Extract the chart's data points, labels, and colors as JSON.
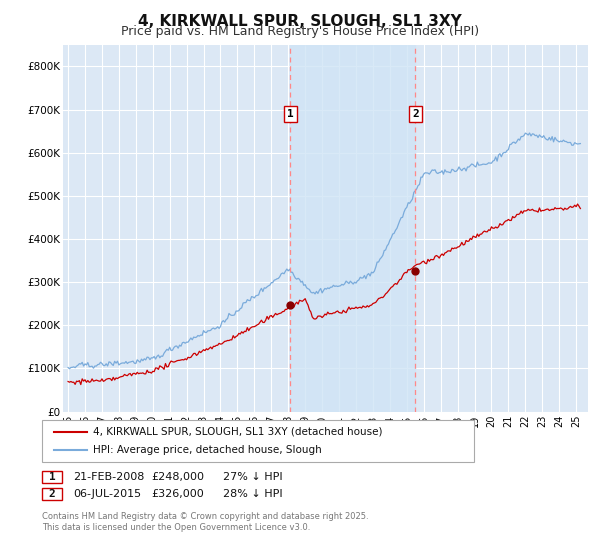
{
  "title": "4, KIRKWALL SPUR, SLOUGH, SL1 3XY",
  "subtitle": "Price paid vs. HM Land Registry's House Price Index (HPI)",
  "ylim": [
    0,
    850000
  ],
  "yticks": [
    0,
    100000,
    200000,
    300000,
    400000,
    500000,
    600000,
    700000,
    800000
  ],
  "ytick_labels": [
    "£0",
    "£100K",
    "£200K",
    "£300K",
    "£400K",
    "£500K",
    "£600K",
    "£700K",
    "£800K"
  ],
  "background_color": "#ffffff",
  "plot_background": "#dce8f5",
  "grid_color": "#ffffff",
  "title_fontsize": 11,
  "subtitle_fontsize": 9,
  "marker1_year": 2008.13,
  "marker1_price": 248000,
  "marker2_year": 2015.51,
  "marker2_price": 326000,
  "legend_line1": "4, KIRKWALL SPUR, SLOUGH, SL1 3XY (detached house)",
  "legend_line2": "HPI: Average price, detached house, Slough",
  "footnote": "Contains HM Land Registry data © Crown copyright and database right 2025.\nThis data is licensed under the Open Government Licence v3.0.",
  "table_rows": [
    [
      "1",
      "21-FEB-2008",
      "£248,000",
      "27% ↓ HPI"
    ],
    [
      "2",
      "06-JUL-2015",
      "£326,000",
      "28% ↓ HPI"
    ]
  ],
  "line_color_red": "#cc0000",
  "line_color_blue": "#7aabdb",
  "vline_color": "#ff8888",
  "shade_color": "#d0e4f5",
  "dot_color_red": "#880000"
}
